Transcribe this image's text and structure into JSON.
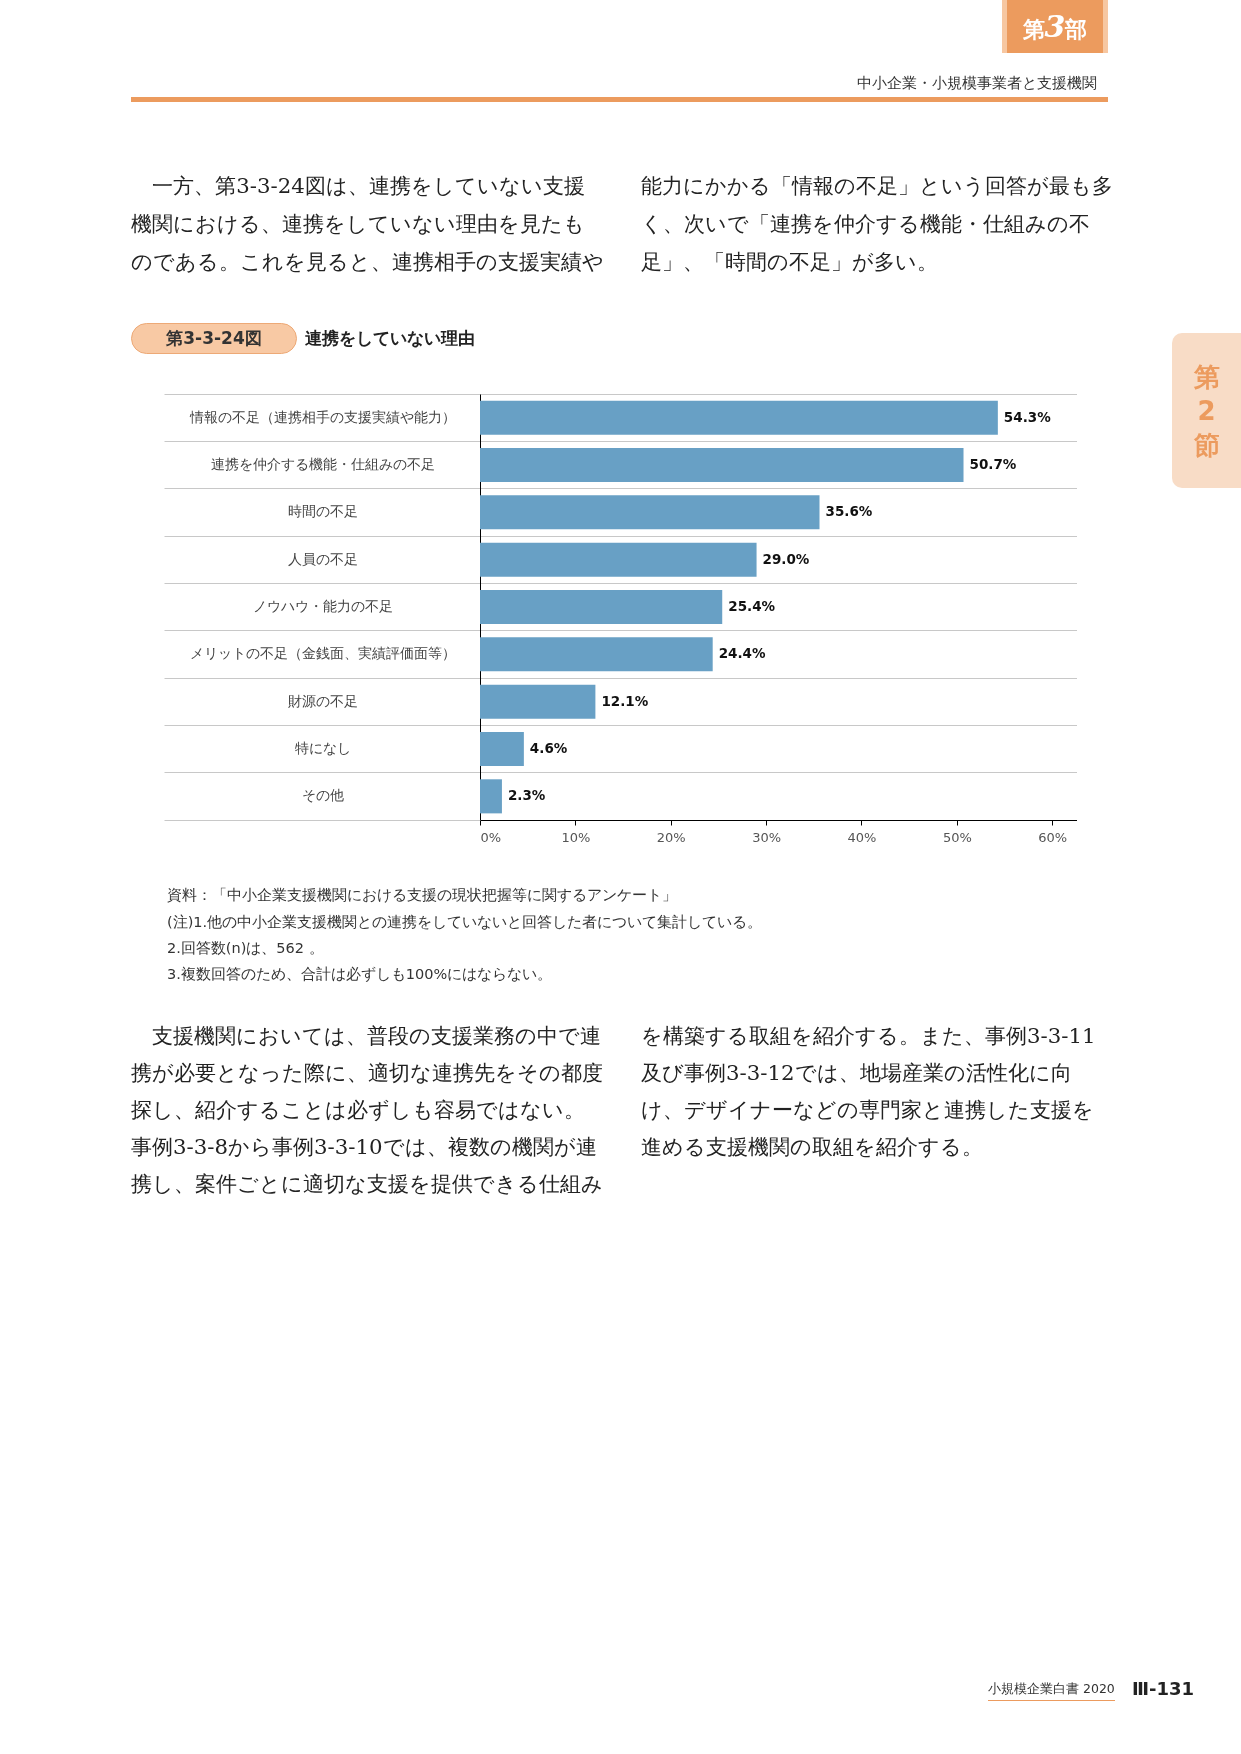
{
  "chart_data": {
    "type": "bar",
    "orientation": "horizontal",
    "title": "連携をしていない理由",
    "categories": [
      "情報の不足（連携相手の支援実績や能力）",
      "連携を仲介する機能・仕組みの不足",
      "時間の不足",
      "人員の不足",
      "ノウハウ・能力の不足",
      "メリットの不足（金銭面、実績評価面等）",
      "財源の不足",
      "特になし",
      "その他"
    ],
    "values": [
      54.3,
      50.7,
      35.6,
      29.0,
      25.4,
      24.4,
      12.1,
      4.6,
      2.3
    ],
    "value_labels": [
      "54.3%",
      "50.7%",
      "35.6%",
      "29.0%",
      "25.4%",
      "24.4%",
      "12.1%",
      "4.6%",
      "2.3%"
    ],
    "color": "#68a0c5",
    "xlim": [
      0,
      62.6
    ],
    "xticks": [
      {
        "value": 0,
        "label": "0%"
      },
      {
        "value": 10,
        "label": "10%"
      },
      {
        "value": 20,
        "label": "20%"
      },
      {
        "value": 30,
        "label": "30%"
      },
      {
        "value": 40,
        "label": "40%"
      },
      {
        "value": 50,
        "label": "50%"
      },
      {
        "value": 60,
        "label": "60%"
      }
    ],
    "grid": "y",
    "annotations": [
      "第3部",
      "中小企業・小規模事業者と支援機関",
      "一方、第3-3-24図は、連携をしていない支援機関における、連携をしていない理由を見たものである。これを見ると、連携相手の支援実績や能力にかかる「情報の不足」という回答が最も多く、次いで「連携を仲介する機能・仕組みの不足」、「時間の不足」が多い。",
      "第3-3-24図",
      "第2節",
      "資料：「中小企業支援機関における支援の現状把握等に関するアンケート」",
      "(注)1.他の中小企業支援機関との連携をしていないと回答した者について集計している。",
      "2.回答数(n)は、562 。",
      "3.複数回答のため、合計は必ずしも100%にはならない。",
      "支援機関においては、普段の支援業務の中で連携が必要となった際に、適切な連携先をその都度探し、紹介することは必ずしも容易ではない。事例3-3-8から事例3-3-10では、複数の機関が連携し、案件ごとに適切な支援を提供できる仕組みを構築する取組を紹介する。また、事例3-3-11及び事例3-3-12では、地場産業の活性化に向け、デザイナーなどの専門家と連携した支援を進める支援機関の取組を紹介する。",
      "小規模企業白書 2020",
      "Ⅲ-131"
    ]
  }
}
